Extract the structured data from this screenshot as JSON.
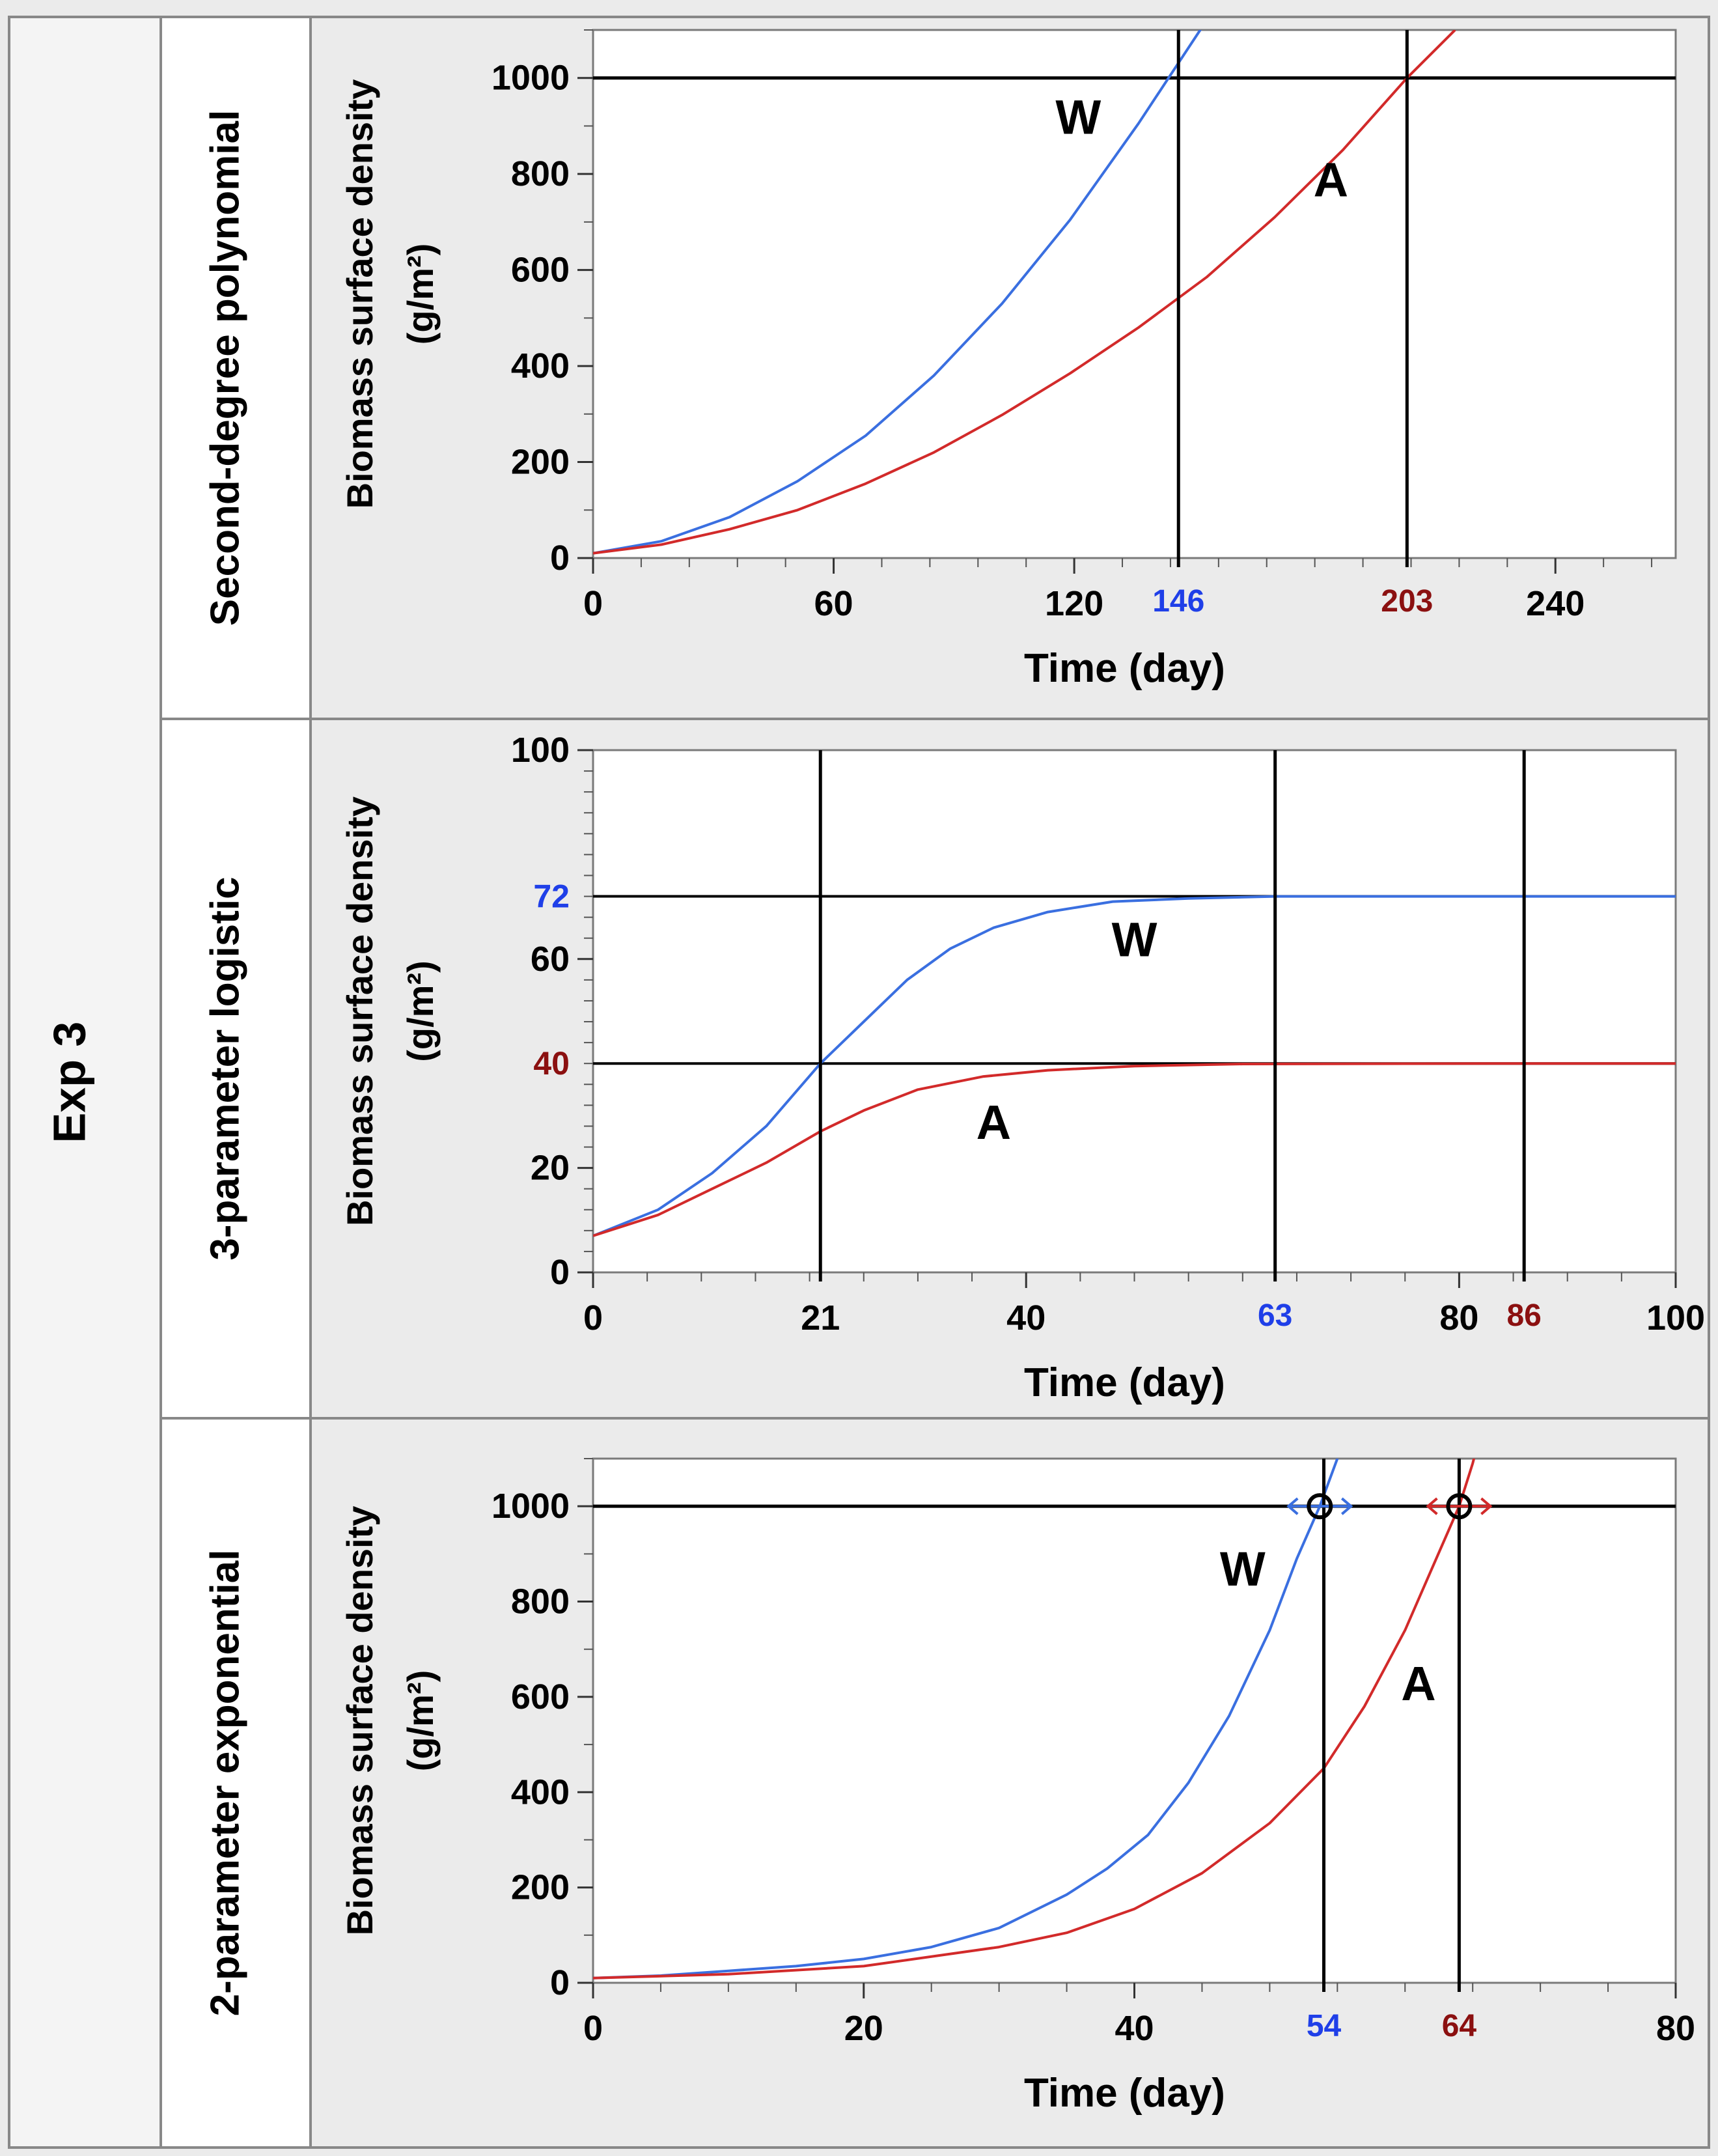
{
  "figure": {
    "row_label": "Exp 3",
    "panel_labels": [
      "Second-degree polynomial",
      "3-parameter logistic",
      "2-parameter exponential"
    ]
  },
  "colors": {
    "W": "#3a6fe0",
    "A": "#d22a2a",
    "frame_bg": "#ebebeb",
    "blue_text": "#1f3fe8",
    "red_text": "#8b1010"
  },
  "chart_data": [
    {
      "type": "line",
      "model": "Second-degree polynomial",
      "ylabel_line1": "Biomass surface density",
      "ylabel_line2": "(g/m²)",
      "xlabel": "Time (day)",
      "xlim": [
        0,
        270
      ],
      "ylim": [
        0,
        1100
      ],
      "x_ticks": [
        "0",
        "60",
        "120",
        "240"
      ],
      "x_tick_values": [
        0,
        60,
        120,
        240
      ],
      "y_ticks": [
        "0",
        "200",
        "400",
        "600",
        "800",
        "1000"
      ],
      "y_tick_values": [
        0,
        200,
        400,
        600,
        800,
        1000
      ],
      "x_minor_step": 12,
      "y_minor_step": 100,
      "threshold_y": 1000,
      "series": [
        {
          "name": "W",
          "color": "#3a6fe0",
          "x": [
            0,
            17,
            34,
            51,
            68,
            85,
            102,
            119,
            136,
            153,
            160
          ],
          "y": [
            10,
            35,
            85,
            160,
            255,
            380,
            530,
            705,
            905,
            1120,
            1230
          ]
        },
        {
          "name": "A",
          "color": "#d22a2a",
          "x": [
            0,
            17,
            34,
            51,
            68,
            85,
            102,
            119,
            136,
            153,
            170,
            187,
            203,
            215
          ],
          "y": [
            10,
            28,
            60,
            100,
            155,
            220,
            298,
            385,
            480,
            585,
            710,
            850,
            1000,
            1100
          ]
        }
      ],
      "vlines": [
        {
          "x": 146,
          "label": "146",
          "label_color": "blue"
        },
        {
          "x": 203,
          "label": "203",
          "label_color": "red"
        }
      ],
      "annotations": [
        {
          "text": "W",
          "x": 121,
          "y": 910
        },
        {
          "text": "A",
          "x": 184,
          "y": 780
        }
      ]
    },
    {
      "type": "line",
      "model": "3-parameter logistic",
      "ylabel_line1": "Biomass surface density",
      "ylabel_line2": "(g/m²)",
      "xlabel": "Time (day)",
      "xlim": [
        0,
        100
      ],
      "ylim": [
        0,
        100
      ],
      "x_ticks": [
        "0",
        "40",
        "80",
        "100"
      ],
      "x_tick_values": [
        0,
        40,
        80,
        100
      ],
      "y_ticks": [
        "0",
        "20",
        "60",
        "100"
      ],
      "y_tick_values": [
        0,
        20,
        60,
        100
      ],
      "x_minor_step": 5,
      "y_minor_step": 4,
      "hlines": [
        {
          "y": 72,
          "label": "72",
          "label_color": "blue"
        },
        {
          "y": 40,
          "label": "40",
          "label_color": "red"
        }
      ],
      "series": [
        {
          "name": "W",
          "color": "#3a6fe0",
          "x": [
            0,
            6,
            11,
            16,
            21,
            25,
            29,
            33,
            37,
            42,
            48,
            55,
            63,
            75,
            100
          ],
          "y": [
            7,
            12,
            19,
            28,
            40,
            48,
            56,
            62,
            66,
            69,
            71,
            71.6,
            72,
            72,
            72
          ]
        },
        {
          "name": "A",
          "color": "#d22a2a",
          "x": [
            0,
            6,
            11,
            16,
            21,
            25,
            30,
            36,
            42,
            50,
            60,
            86,
            100
          ],
          "y": [
            7,
            11,
            16,
            21,
            27,
            31,
            35,
            37.5,
            38.7,
            39.5,
            39.9,
            40,
            40
          ]
        }
      ],
      "vlines": [
        {
          "x": 21,
          "label": "21",
          "label_color": "black"
        },
        {
          "x": 63,
          "label": "63",
          "label_color": "blue"
        },
        {
          "x": 86,
          "label": "86",
          "label_color": "red"
        }
      ],
      "annotations": [
        {
          "text": "W",
          "x": 50,
          "y": 63
        },
        {
          "text": "A",
          "x": 37,
          "y": 28
        }
      ]
    },
    {
      "type": "line",
      "model": "2-parameter exponential",
      "ylabel_line1": "Biomass surface density",
      "ylabel_line2": "(g/m²)",
      "xlabel": "Time (day)",
      "xlim": [
        0,
        80
      ],
      "ylim": [
        0,
        1100
      ],
      "x_ticks": [
        "0",
        "20",
        "40",
        "80"
      ],
      "x_tick_values": [
        0,
        20,
        40,
        80
      ],
      "y_ticks": [
        "0",
        "200",
        "400",
        "600",
        "800",
        "1000"
      ],
      "y_tick_values": [
        0,
        200,
        400,
        600,
        800,
        1000
      ],
      "x_minor_step": 5,
      "y_minor_step": 100,
      "threshold_y": 1000,
      "series": [
        {
          "name": "W",
          "color": "#3a6fe0",
          "x": [
            0,
            5,
            10,
            15,
            20,
            25,
            30,
            35,
            38,
            41,
            44,
            47,
            50,
            52,
            53.7,
            55,
            56
          ],
          "y": [
            10,
            15,
            25,
            35,
            50,
            75,
            115,
            185,
            240,
            310,
            420,
            560,
            740,
            890,
            1000,
            1100,
            1200
          ]
        },
        {
          "name": "A",
          "color": "#d22a2a",
          "x": [
            0,
            10,
            20,
            30,
            35,
            40,
            45,
            50,
            54,
            57,
            60,
            62,
            64,
            65,
            66
          ],
          "y": [
            10,
            18,
            35,
            75,
            105,
            155,
            230,
            335,
            450,
            580,
            740,
            870,
            1000,
            1090,
            1200
          ]
        }
      ],
      "vlines": [
        {
          "x": 54,
          "label": "54",
          "label_color": "blue"
        },
        {
          "x": 64,
          "label": "64",
          "label_color": "red"
        }
      ],
      "markers": [
        {
          "x": 53.7,
          "y": 1000,
          "series": "W"
        },
        {
          "x": 64,
          "y": 1000,
          "series": "A"
        }
      ],
      "annotations": [
        {
          "text": "W",
          "x": 48,
          "y": 860
        },
        {
          "text": "A",
          "x": 61,
          "y": 620
        }
      ]
    }
  ]
}
